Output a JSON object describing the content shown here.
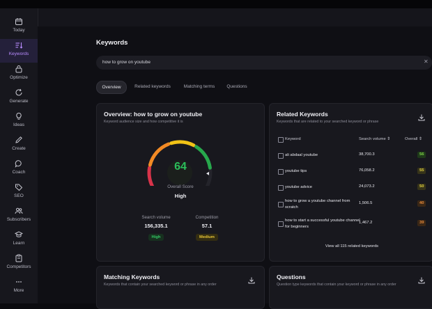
{
  "sidebar": {
    "items": [
      {
        "label": "Today",
        "icon": "calendar-icon"
      },
      {
        "label": "Keywords",
        "icon": "keywords-icon",
        "active": true
      },
      {
        "label": "Optimize",
        "icon": "lock-icon"
      },
      {
        "label": "Generate",
        "icon": "refresh-icon"
      },
      {
        "label": "Ideas",
        "icon": "lightbulb-icon"
      },
      {
        "label": "Create",
        "icon": "pencil-icon"
      },
      {
        "label": "Coach",
        "icon": "chat-icon"
      },
      {
        "label": "SEO",
        "icon": "tag-icon"
      },
      {
        "label": "Subscribers",
        "icon": "users-icon"
      },
      {
        "label": "Learn",
        "icon": "graduation-cap-icon"
      },
      {
        "label": "Competitors",
        "icon": "clipboard-icon"
      },
      {
        "label": "More",
        "icon": "dots-icon"
      }
    ]
  },
  "page": {
    "title": "Keywords"
  },
  "search": {
    "value": "how to grow on youtube",
    "clear_icon": "close-icon"
  },
  "tabs": [
    {
      "label": "Overview",
      "active": true
    },
    {
      "label": "Related keywords"
    },
    {
      "label": "Matching terms"
    },
    {
      "label": "Questions"
    }
  ],
  "overview": {
    "title": "Overview: how to grow on youtube",
    "subtitle": "Keyword audience size and how competitive it is",
    "score": "64",
    "score_fraction": 0.64,
    "overall_score_label": "Overall Score",
    "overall_score_value": "High",
    "search_volume_label": "Search volume",
    "search_volume_value": "156,335.1",
    "search_volume_badge": "High",
    "competition_label": "Competition",
    "competition_value": "57.1",
    "competition_badge": "Medium"
  },
  "related": {
    "title": "Related Keywords",
    "subtitle": "Keywords that are related to your searched keyword or phrase",
    "columns": {
      "keyword": "Keyword",
      "volume": "Search volume",
      "overall": "Overall"
    },
    "rows": [
      {
        "keyword": "ali abdaal youtube",
        "volume": "38,700.3",
        "overall": "56",
        "level": "green"
      },
      {
        "keyword": "youtube tips",
        "volume": "76,058.2",
        "overall": "55",
        "level": "yellow"
      },
      {
        "keyword": "youtube advice",
        "volume": "24,073.2",
        "overall": "50",
        "level": "yellow"
      },
      {
        "keyword": "how to grow a youtube channel from scratch",
        "volume": "1,506.5",
        "overall": "40",
        "level": "orange"
      },
      {
        "keyword": "how to start a successful youtube channel for beginners",
        "volume": "1,467.2",
        "overall": "39",
        "level": "orange"
      }
    ],
    "view_all": "View all 115 related keywords"
  },
  "matching": {
    "title": "Matching Keywords",
    "subtitle": "Keywords that contain your searched keyword or phrase in any order"
  },
  "questions": {
    "title": "Questions",
    "subtitle": "Question type keywords that contain your keyword or phrase in any order"
  },
  "colors": {
    "accent": "#b98cff",
    "score_green": "#2bbf5a",
    "gauge_red": "#d8334a",
    "gauge_orange": "#f28a24",
    "gauge_yellow": "#f2c316",
    "gauge_green": "#27a84c"
  }
}
